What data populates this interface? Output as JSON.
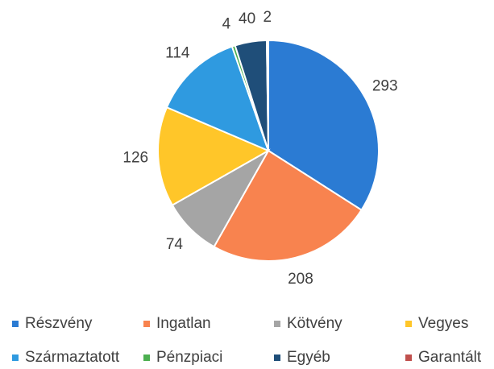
{
  "chart_data": {
    "type": "pie",
    "categories": [
      "Részvény",
      "Ingatlan",
      "Kötvény",
      "Vegyes",
      "Származtatott",
      "Pénzpiaci",
      "Egyéb",
      "Garantált"
    ],
    "values": [
      293,
      208,
      74,
      126,
      114,
      4,
      40,
      2
    ],
    "colors": [
      "#2b7bd3",
      "#f8834f",
      "#a5a5a5",
      "#ffc629",
      "#2f9ae0",
      "#4caf50",
      "#1f4e79",
      "#c0504d"
    ],
    "legend": "bottom"
  }
}
